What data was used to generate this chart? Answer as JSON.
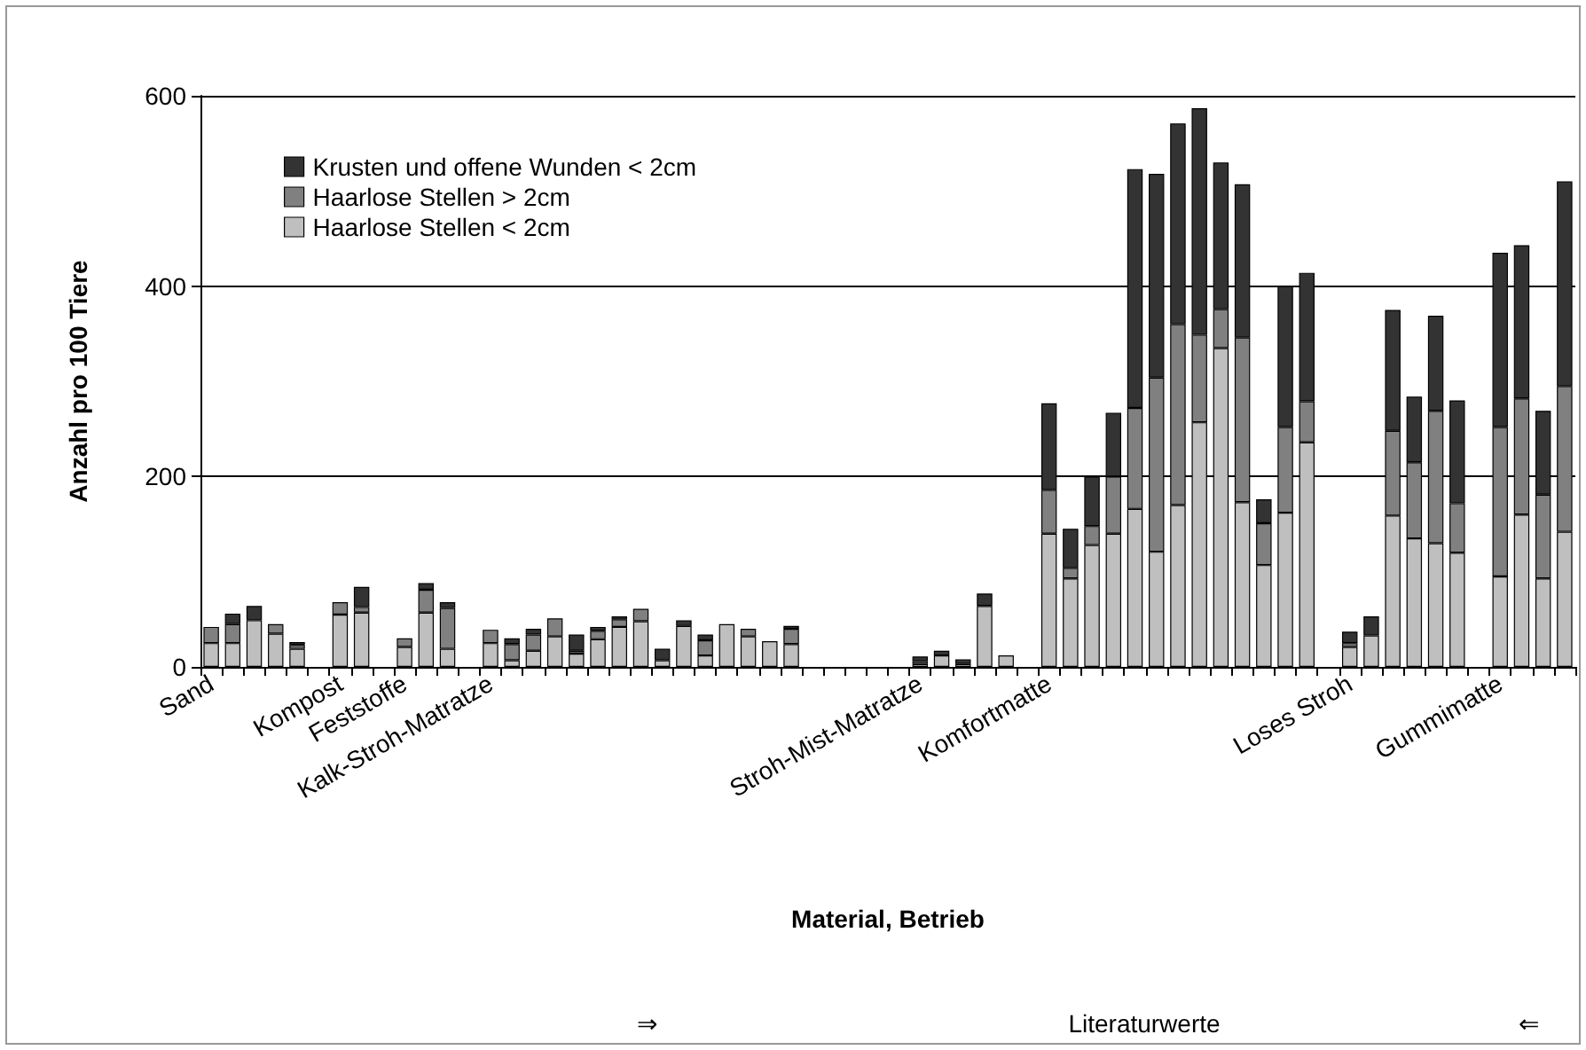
{
  "chart_data": {
    "type": "bar",
    "stacked": true,
    "xlabel": "Material, Betrieb",
    "ylabel": "Anzahl pro 100 Tiere",
    "categories": [
      "Sand",
      null,
      null,
      null,
      null,
      null,
      "Kompost",
      null,
      null,
      "Feststoffe",
      null,
      null,
      null,
      "Kalk-Stroh-Matratze",
      null,
      null,
      null,
      null,
      null,
      null,
      null,
      null,
      null,
      null,
      null,
      null,
      null,
      null,
      null,
      null,
      null,
      null,
      null,
      "Stroh-Mist-Matratze",
      null,
      null,
      null,
      null,
      null,
      "Komfortmatte",
      null,
      null,
      null,
      null,
      null,
      null,
      null,
      null,
      null,
      null,
      null,
      null,
      null,
      "Loses Stroh",
      null,
      null,
      null,
      null,
      null,
      null,
      "Gummimatte",
      null,
      null,
      null
    ],
    "series": [
      {
        "name": "Haarlose Stellen < 2cm",
        "color": "#bfbfbf",
        "values": [
          25,
          25,
          49,
          35,
          19,
          null,
          55,
          57,
          null,
          21,
          57,
          19,
          null,
          25,
          7,
          17,
          32,
          14,
          29,
          42,
          48,
          7,
          43,
          12,
          45,
          32,
          27,
          24,
          null,
          null,
          null,
          null,
          null,
          3,
          12,
          3,
          64,
          12,
          null,
          140,
          93,
          128,
          140,
          166,
          121,
          170,
          257,
          335,
          173,
          107,
          162,
          236,
          null,
          21,
          33,
          159,
          135,
          130,
          120,
          null,
          95,
          160,
          93,
          142
        ]
      },
      {
        "name": "Haarlose Stellen > 2cm",
        "color": "#808080",
        "values": [
          17,
          20,
          null,
          10,
          4,
          null,
          13,
          6,
          null,
          9,
          24,
          43,
          null,
          14,
          17,
          17,
          19,
          3,
          9,
          8,
          13,
          null,
          null,
          16,
          null,
          8,
          null,
          16,
          null,
          null,
          null,
          null,
          null,
          3,
          null,
          null,
          null,
          null,
          null,
          46,
          11,
          20,
          60,
          106,
          183,
          190,
          92,
          41,
          173,
          44,
          90,
          43,
          null,
          4,
          null,
          89,
          80,
          139,
          52,
          null,
          157,
          122,
          88,
          153
        ]
      },
      {
        "name": "Krusten und offene Wunden < 2cm",
        "color": "#333333",
        "values": [
          null,
          11,
          15,
          null,
          3,
          null,
          null,
          21,
          null,
          null,
          7,
          6,
          null,
          null,
          6,
          6,
          null,
          17,
          4,
          3,
          null,
          12,
          6,
          6,
          null,
          null,
          null,
          3,
          null,
          null,
          null,
          null,
          null,
          5,
          5,
          5,
          13,
          null,
          null,
          91,
          41,
          52,
          67,
          251,
          214,
          211,
          238,
          154,
          161,
          25,
          148,
          135,
          null,
          12,
          20,
          127,
          69,
          100,
          108,
          null,
          183,
          161,
          88,
          215
        ]
      }
    ],
    "ylim": [
      0,
      600
    ],
    "yticks": [
      0,
      200,
      400,
      600
    ],
    "grid": "y",
    "legend": "top left",
    "annotations": [
      "⇒",
      "Literaturwerte",
      "⇐"
    ]
  }
}
